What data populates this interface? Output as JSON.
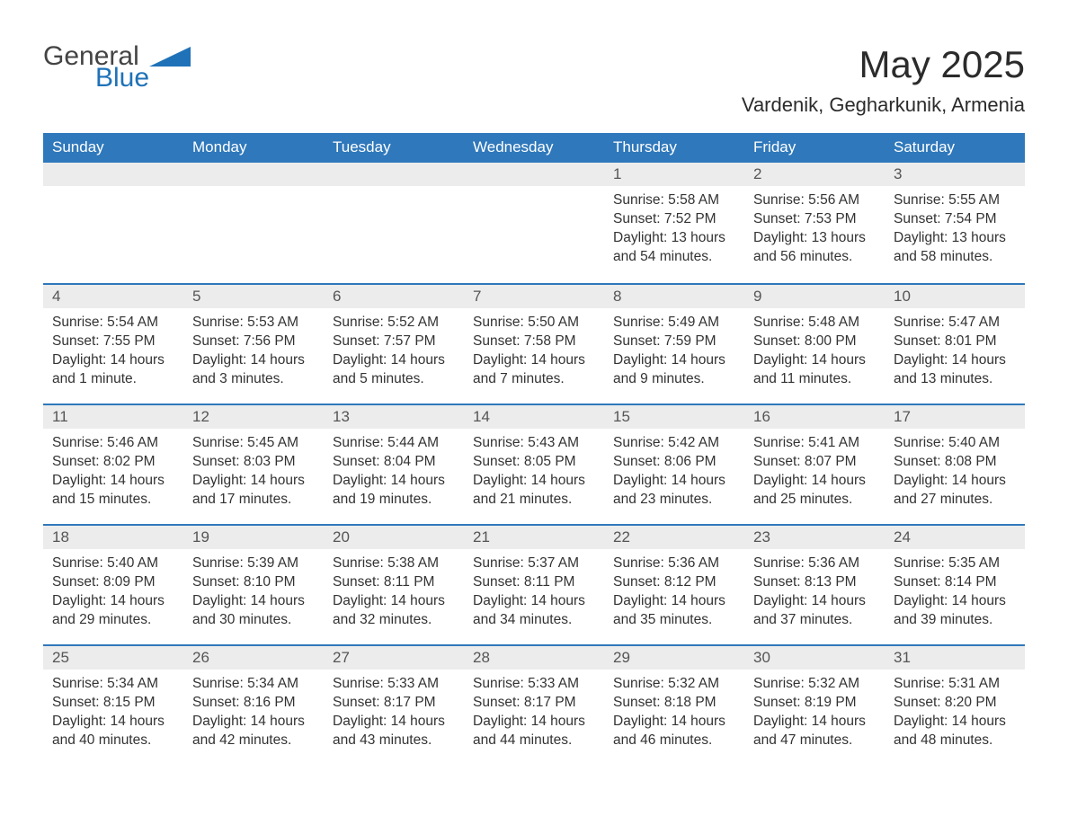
{
  "colors": {
    "header_bg": "#2f78bb",
    "header_text": "#ffffff",
    "daynum_bg": "#ececec",
    "daynum_border_top": "#2f78bb",
    "body_text": "#333333",
    "logo_general": "#444444",
    "logo_blue": "#1f72b8",
    "page_bg": "#ffffff"
  },
  "typography": {
    "title_fontsize": 42,
    "subtitle_fontsize": 22,
    "header_fontsize": 17,
    "daynum_fontsize": 17,
    "body_fontsize": 15.5,
    "font_family": "Arial"
  },
  "logo": {
    "line1": "General",
    "line2": "Blue"
  },
  "title": "May 2025",
  "subtitle": "Vardenik, Gegharkunik, Armenia",
  "weekdays": [
    "Sunday",
    "Monday",
    "Tuesday",
    "Wednesday",
    "Thursday",
    "Friday",
    "Saturday"
  ],
  "calendar": {
    "type": "table",
    "columns": 7,
    "rows": 5,
    "first_day_column_index": 4,
    "days": [
      {
        "n": 1,
        "sunrise": "5:58 AM",
        "sunset": "7:52 PM",
        "daylight": "13 hours and 54 minutes."
      },
      {
        "n": 2,
        "sunrise": "5:56 AM",
        "sunset": "7:53 PM",
        "daylight": "13 hours and 56 minutes."
      },
      {
        "n": 3,
        "sunrise": "5:55 AM",
        "sunset": "7:54 PM",
        "daylight": "13 hours and 58 minutes."
      },
      {
        "n": 4,
        "sunrise": "5:54 AM",
        "sunset": "7:55 PM",
        "daylight": "14 hours and 1 minute."
      },
      {
        "n": 5,
        "sunrise": "5:53 AM",
        "sunset": "7:56 PM",
        "daylight": "14 hours and 3 minutes."
      },
      {
        "n": 6,
        "sunrise": "5:52 AM",
        "sunset": "7:57 PM",
        "daylight": "14 hours and 5 minutes."
      },
      {
        "n": 7,
        "sunrise": "5:50 AM",
        "sunset": "7:58 PM",
        "daylight": "14 hours and 7 minutes."
      },
      {
        "n": 8,
        "sunrise": "5:49 AM",
        "sunset": "7:59 PM",
        "daylight": "14 hours and 9 minutes."
      },
      {
        "n": 9,
        "sunrise": "5:48 AM",
        "sunset": "8:00 PM",
        "daylight": "14 hours and 11 minutes."
      },
      {
        "n": 10,
        "sunrise": "5:47 AM",
        "sunset": "8:01 PM",
        "daylight": "14 hours and 13 minutes."
      },
      {
        "n": 11,
        "sunrise": "5:46 AM",
        "sunset": "8:02 PM",
        "daylight": "14 hours and 15 minutes."
      },
      {
        "n": 12,
        "sunrise": "5:45 AM",
        "sunset": "8:03 PM",
        "daylight": "14 hours and 17 minutes."
      },
      {
        "n": 13,
        "sunrise": "5:44 AM",
        "sunset": "8:04 PM",
        "daylight": "14 hours and 19 minutes."
      },
      {
        "n": 14,
        "sunrise": "5:43 AM",
        "sunset": "8:05 PM",
        "daylight": "14 hours and 21 minutes."
      },
      {
        "n": 15,
        "sunrise": "5:42 AM",
        "sunset": "8:06 PM",
        "daylight": "14 hours and 23 minutes."
      },
      {
        "n": 16,
        "sunrise": "5:41 AM",
        "sunset": "8:07 PM",
        "daylight": "14 hours and 25 minutes."
      },
      {
        "n": 17,
        "sunrise": "5:40 AM",
        "sunset": "8:08 PM",
        "daylight": "14 hours and 27 minutes."
      },
      {
        "n": 18,
        "sunrise": "5:40 AM",
        "sunset": "8:09 PM",
        "daylight": "14 hours and 29 minutes."
      },
      {
        "n": 19,
        "sunrise": "5:39 AM",
        "sunset": "8:10 PM",
        "daylight": "14 hours and 30 minutes."
      },
      {
        "n": 20,
        "sunrise": "5:38 AM",
        "sunset": "8:11 PM",
        "daylight": "14 hours and 32 minutes."
      },
      {
        "n": 21,
        "sunrise": "5:37 AM",
        "sunset": "8:11 PM",
        "daylight": "14 hours and 34 minutes."
      },
      {
        "n": 22,
        "sunrise": "5:36 AM",
        "sunset": "8:12 PM",
        "daylight": "14 hours and 35 minutes."
      },
      {
        "n": 23,
        "sunrise": "5:36 AM",
        "sunset": "8:13 PM",
        "daylight": "14 hours and 37 minutes."
      },
      {
        "n": 24,
        "sunrise": "5:35 AM",
        "sunset": "8:14 PM",
        "daylight": "14 hours and 39 minutes."
      },
      {
        "n": 25,
        "sunrise": "5:34 AM",
        "sunset": "8:15 PM",
        "daylight": "14 hours and 40 minutes."
      },
      {
        "n": 26,
        "sunrise": "5:34 AM",
        "sunset": "8:16 PM",
        "daylight": "14 hours and 42 minutes."
      },
      {
        "n": 27,
        "sunrise": "5:33 AM",
        "sunset": "8:17 PM",
        "daylight": "14 hours and 43 minutes."
      },
      {
        "n": 28,
        "sunrise": "5:33 AM",
        "sunset": "8:17 PM",
        "daylight": "14 hours and 44 minutes."
      },
      {
        "n": 29,
        "sunrise": "5:32 AM",
        "sunset": "8:18 PM",
        "daylight": "14 hours and 46 minutes."
      },
      {
        "n": 30,
        "sunrise": "5:32 AM",
        "sunset": "8:19 PM",
        "daylight": "14 hours and 47 minutes."
      },
      {
        "n": 31,
        "sunrise": "5:31 AM",
        "sunset": "8:20 PM",
        "daylight": "14 hours and 48 minutes."
      }
    ],
    "labels": {
      "sunrise": "Sunrise:",
      "sunset": "Sunset:",
      "daylight": "Daylight:"
    }
  }
}
